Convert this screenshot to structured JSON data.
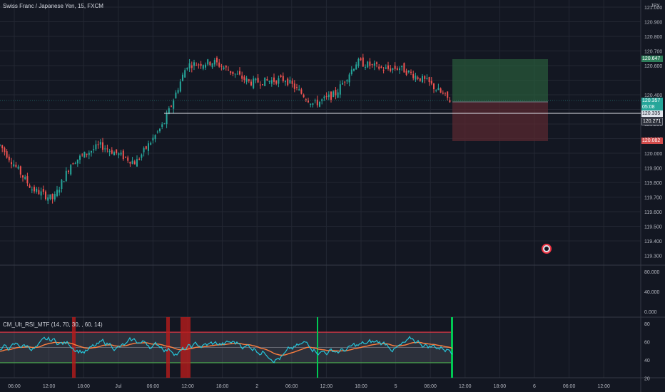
{
  "header": {
    "symbol": "Swiss Franc / Japanese Yen, 15, FXCM",
    "currency": "JPY"
  },
  "indicator": {
    "title": "CM_Ult_RSI_MTF (14, 70, 30, , 60, 14)"
  },
  "price_axis": {
    "ticks": [
      "121.000",
      "120.900",
      "120.800",
      "120.700",
      "120.600",
      "120.400",
      "120.300",
      "120.200",
      "120.100",
      "120.000",
      "119.900",
      "119.800",
      "119.700",
      "119.600",
      "119.500",
      "119.400",
      "119.300"
    ]
  },
  "osc_axis": {
    "ticks": [
      "80.000",
      "40.000",
      "0.000"
    ]
  },
  "rsi_axis": {
    "ticks": [
      "80",
      "60",
      "40",
      "20"
    ]
  },
  "time_axis": {
    "ticks": [
      "06:00",
      "12:00",
      "18:00",
      "Jul",
      "06:00",
      "12:00",
      "18:00",
      "2",
      "06:00",
      "12:00",
      "18:00",
      "5",
      "06:00",
      "12:00",
      "18:00",
      "6",
      "06:00",
      "12:00"
    ]
  },
  "price_tags": {
    "target": "120.647",
    "current": "120.357",
    "countdown": "05:08",
    "line": "120.335",
    "entry": "120.271",
    "stop": "120.082"
  },
  "colors": {
    "bg": "#131722",
    "up": "#26a69a",
    "down": "#ef5350",
    "grid": "#232733",
    "target": "#2a5c3a",
    "stop": "#5c2a31",
    "rsi": "#26c6da",
    "rsi_avg": "#ff7f3f",
    "band_line": "#4caf50",
    "band_upper": "#f23645"
  },
  "icons": [
    "tradingview-replay-icon"
  ]
}
